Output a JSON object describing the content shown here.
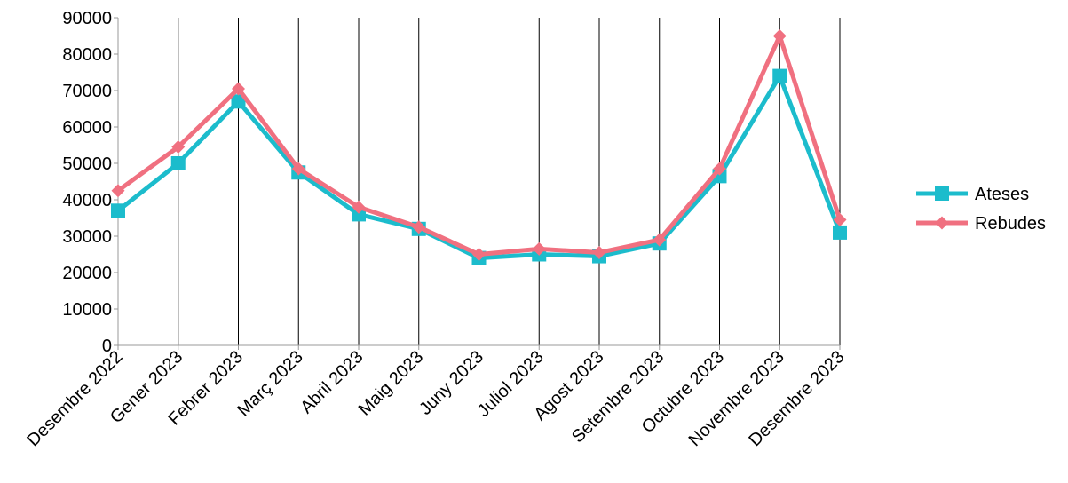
{
  "chart_data": {
    "type": "line",
    "title": "",
    "xlabel": "",
    "ylabel": "",
    "categories": [
      "Desembre 2022",
      "Gener 2023",
      "Febrer 2023",
      "Març 2023",
      "Abril 2023",
      "Maig 2023",
      "Juny 2023",
      "Juliol 2023",
      "Agost 2023",
      "Setembre 2023",
      "Octubre 2023",
      "Novembre 2023",
      "Desembre 2023"
    ],
    "ylim": [
      0,
      90000
    ],
    "yticks": [
      0,
      10000,
      20000,
      30000,
      40000,
      50000,
      60000,
      70000,
      80000,
      90000
    ],
    "grid": "vertical",
    "legend_position": "right",
    "series": [
      {
        "name": "Ateses",
        "color": "#1cbccc",
        "marker": "square",
        "values": [
          37000,
          50000,
          67000,
          47500,
          36000,
          32000,
          24000,
          25000,
          24500,
          28000,
          46500,
          74000,
          31000
        ]
      },
      {
        "name": "Rebudes",
        "color": "#f07080",
        "marker": "diamond",
        "values": [
          42500,
          54500,
          70500,
          48500,
          38000,
          32500,
          25000,
          26500,
          25500,
          29000,
          48500,
          85000,
          34500
        ]
      }
    ]
  }
}
